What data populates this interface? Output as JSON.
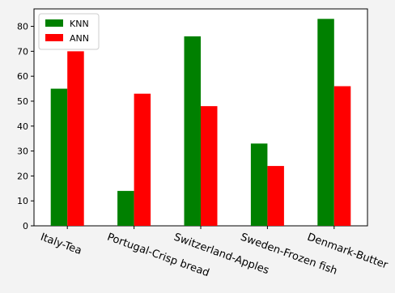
{
  "chart_data": {
    "type": "bar",
    "categories": [
      "Italy-Tea",
      "Portugal-Crisp bread",
      "Switzerland-Apples",
      "Sweden-Frozen fish",
      "Denmark-Butter"
    ],
    "series": [
      {
        "name": "KNN",
        "color": "#008000",
        "values": [
          55,
          14,
          76,
          33,
          83
        ]
      },
      {
        "name": "ANN",
        "color": "#ff0000",
        "values": [
          70,
          53,
          48,
          24,
          56
        ]
      }
    ],
    "ylim": [
      0,
      87
    ],
    "yticks": [
      0,
      10,
      20,
      30,
      40,
      50,
      60,
      70,
      80
    ],
    "title": "",
    "xlabel": "",
    "ylabel": "",
    "grid": false,
    "legend_position": "top-left"
  }
}
